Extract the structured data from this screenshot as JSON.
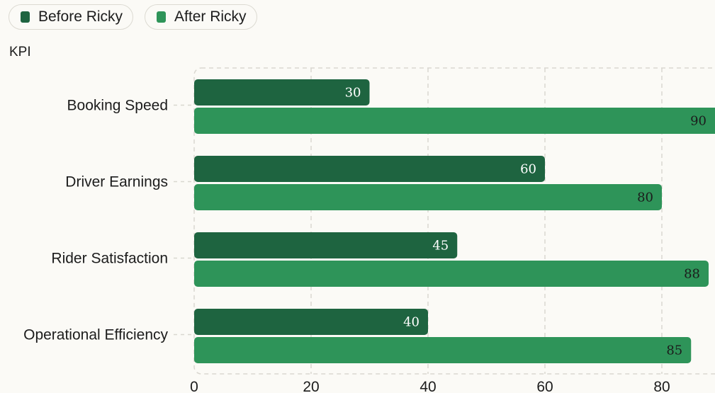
{
  "legend": {
    "items": [
      {
        "label": "Before Ricky",
        "color": "#1e6440"
      },
      {
        "label": "After Ricky",
        "color": "#2e9459"
      }
    ]
  },
  "chart_data": {
    "type": "bar",
    "orientation": "horizontal",
    "ylabel": "KPI",
    "xlabel": "",
    "categories": [
      "Booking Speed",
      "Driver Earnings",
      "Rider Satisfaction",
      "Operational Efficiency"
    ],
    "series": [
      {
        "name": "Before Ricky",
        "values": [
          30,
          60,
          45,
          40
        ],
        "color": "#1e6440",
        "label_color": "#ffffff"
      },
      {
        "name": "After Ricky",
        "values": [
          90,
          80,
          88,
          85
        ],
        "color": "#2e9459",
        "label_color": "#1c1c1c"
      }
    ],
    "x_ticks": [
      0,
      20,
      40,
      60,
      80
    ],
    "xlim": [
      0,
      89
    ],
    "grid": true,
    "legend_position": "top-left"
  }
}
